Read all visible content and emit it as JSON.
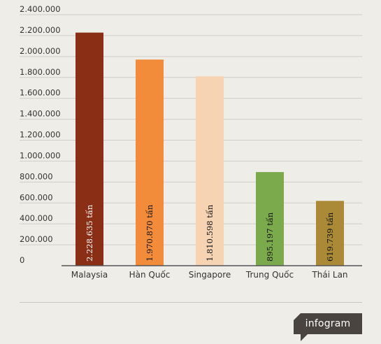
{
  "chart_data": {
    "type": "bar",
    "title": "",
    "xlabel": "",
    "ylabel": "",
    "ylim": [
      0,
      2400000
    ],
    "yticks": [
      "0",
      "200.000",
      "400.000",
      "600.000",
      "800.000",
      "1.000.000",
      "1.200.000",
      "1.400.000",
      "1.600.000",
      "1.800.000",
      "2.000.000",
      "2.200.000",
      "2.400.000"
    ],
    "grid": true,
    "categories": [
      "Malaysia",
      "Hàn Quốc",
      "Singapore",
      "Trung Quốc",
      "Thái Lan"
    ],
    "values": [
      2228635,
      1970870,
      1810598,
      895197,
      619739
    ],
    "data_labels": [
      "2.228.635 tấn",
      "1.970.870 tấn",
      "1.810.598 tấn",
      "895.197 tấn",
      "619.739 tấn"
    ],
    "colors": [
      "#8b2e16",
      "#f28b3a",
      "#f5d3b3",
      "#7aaa4c",
      "#aa8a36"
    ],
    "label_colors": [
      "#ffffff",
      "#111111",
      "#111111",
      "#111111",
      "#111111"
    ]
  },
  "brand": {
    "label": "infogram",
    "bg_color": "#4a4440"
  }
}
